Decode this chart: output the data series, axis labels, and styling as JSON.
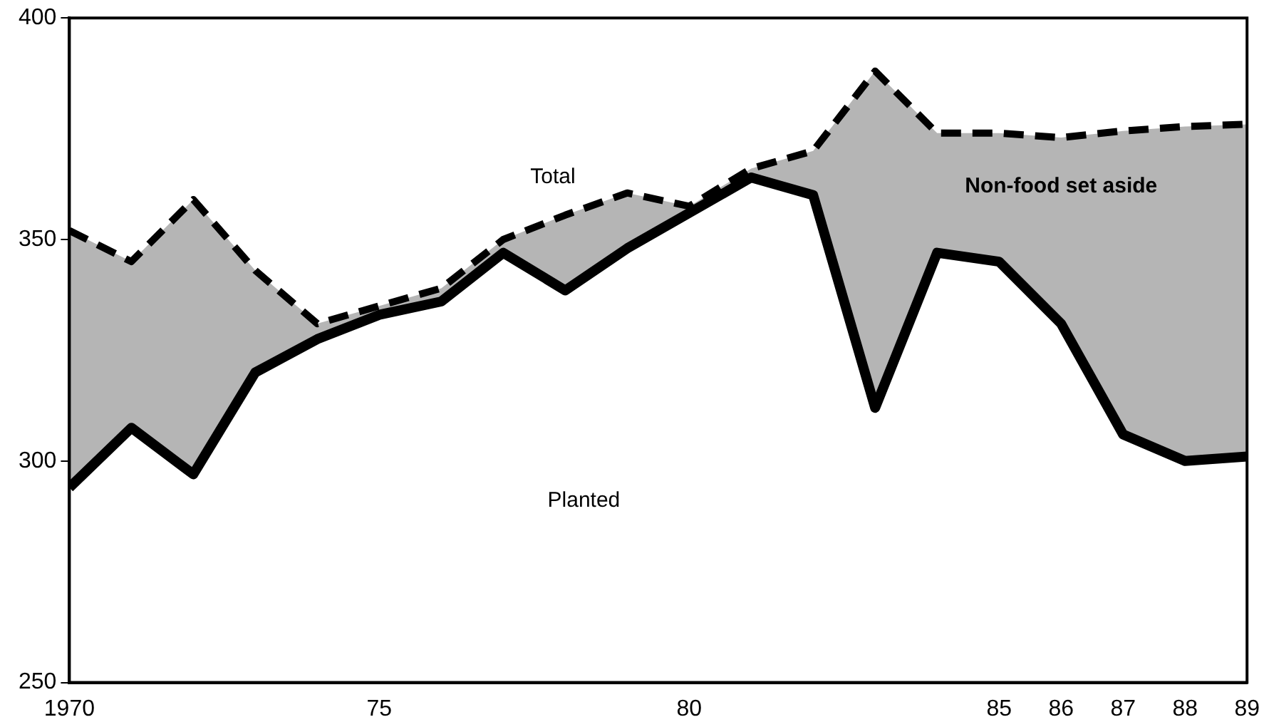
{
  "chart_data": {
    "type": "line",
    "x": [
      1970,
      1971,
      1972,
      1973,
      1974,
      1975,
      1976,
      1977,
      1978,
      1979,
      1980,
      1981,
      1982,
      1983,
      1984,
      1985,
      1986,
      1987,
      1988,
      1989
    ],
    "series": [
      {
        "type": "line",
        "color": "#000000",
        "line_style": "solid",
        "values": [
          294,
          307.5,
          297,
          320,
          327.5,
          333,
          336,
          347,
          338.5,
          348,
          356,
          364,
          360,
          312,
          347,
          345,
          331,
          306,
          300,
          301
        ]
      },
      {
        "type": "area",
        "color": "#000000",
        "line_style": "dashed",
        "values": [
          352,
          345,
          359,
          343,
          331,
          335,
          339,
          350,
          355.5,
          360.5,
          357.5,
          366,
          370,
          388,
          374,
          374,
          373,
          374.5,
          375.5,
          376
        ]
      }
    ],
    "xlim": [
      1970,
      1989
    ],
    "xticks": [
      {
        "value": 1970,
        "label": "1970"
      },
      {
        "value": 1975,
        "label": "75"
      },
      {
        "value": 1980,
        "label": "80"
      },
      {
        "value": 1985,
        "label": "85"
      },
      {
        "value": 1986,
        "label": "86"
      },
      {
        "value": 1987,
        "label": "87"
      },
      {
        "value": 1988,
        "label": "88"
      },
      {
        "value": 1989,
        "label": "89"
      }
    ],
    "ylim": [
      250,
      400
    ],
    "yticks": [
      250,
      300,
      350,
      400
    ],
    "annotations": [
      "Total",
      "Planted",
      "Non-food set aside"
    ],
    "grid": false,
    "legend": false,
    "marker": "none"
  }
}
